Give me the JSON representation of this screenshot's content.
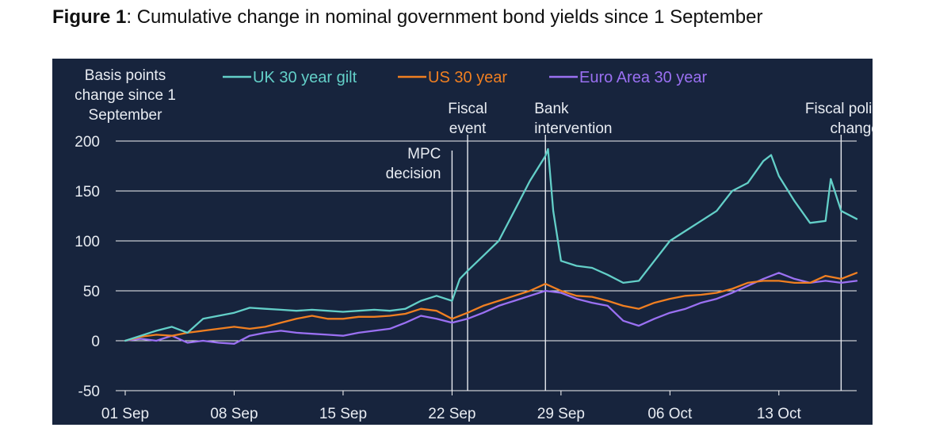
{
  "figure": {
    "label": "Figure 1",
    "title_text": ": Cumulative change in nominal government bond yields since 1 September"
  },
  "chart_data": {
    "type": "line",
    "title": "Figure 1: Cumulative change in nominal government bond yields since 1 September",
    "ylabel_lines": [
      "Basis points",
      "change since 1",
      "September"
    ],
    "xlabel": "",
    "ylim": [
      -50,
      200
    ],
    "yticks": [
      -50,
      0,
      50,
      100,
      150,
      200
    ],
    "x_domain": [
      "2022-09-01",
      "2022-10-18"
    ],
    "xticks": [
      {
        "date": "2022-09-01",
        "label": "01 Sep"
      },
      {
        "date": "2022-09-08",
        "label": "08 Sep"
      },
      {
        "date": "2022-09-15",
        "label": "15 Sep"
      },
      {
        "date": "2022-09-22",
        "label": "22 Sep"
      },
      {
        "date": "2022-09-29",
        "label": "29 Sep"
      },
      {
        "date": "2022-10-06",
        "label": "06 Oct"
      },
      {
        "date": "2022-10-13",
        "label": "13 Oct"
      }
    ],
    "grid": true,
    "legend_position": "top",
    "annotations": [
      {
        "date": "2022-09-22",
        "lines": [
          "MPC",
          "decision"
        ]
      },
      {
        "date": "2022-09-23",
        "lines": [
          "Fiscal",
          "event"
        ]
      },
      {
        "date": "2022-09-28",
        "lines": [
          "Bank",
          "intervention"
        ]
      },
      {
        "date": "2022-10-17",
        "lines": [
          "Fiscal policy",
          "changes"
        ]
      }
    ],
    "series": [
      {
        "name": "UK 30 year gilt",
        "color": "#63cfc8",
        "points": [
          [
            "2022-09-01",
            0
          ],
          [
            "2022-09-02",
            5
          ],
          [
            "2022-09-03",
            10
          ],
          [
            "2022-09-04",
            14
          ],
          [
            "2022-09-05",
            8
          ],
          [
            "2022-09-06",
            22
          ],
          [
            "2022-09-07",
            25
          ],
          [
            "2022-09-08",
            28
          ],
          [
            "2022-09-09",
            33
          ],
          [
            "2022-09-10",
            32
          ],
          [
            "2022-09-11",
            31
          ],
          [
            "2022-09-12",
            30
          ],
          [
            "2022-09-13",
            31
          ],
          [
            "2022-09-14",
            30
          ],
          [
            "2022-09-15",
            29
          ],
          [
            "2022-09-16",
            30
          ],
          [
            "2022-09-17",
            31
          ],
          [
            "2022-09-18",
            30
          ],
          [
            "2022-09-19",
            32
          ],
          [
            "2022-09-20",
            40
          ],
          [
            "2022-09-21",
            45
          ],
          [
            "2022-09-22",
            40
          ],
          [
            "2022-09-22T12",
            62
          ],
          [
            "2022-09-23",
            70
          ],
          [
            "2022-09-24",
            85
          ],
          [
            "2022-09-25",
            100
          ],
          [
            "2022-09-26",
            130
          ],
          [
            "2022-09-27",
            160
          ],
          [
            "2022-09-28",
            185
          ],
          [
            "2022-09-28T04",
            192
          ],
          [
            "2022-09-28T12",
            130
          ],
          [
            "2022-09-29",
            80
          ],
          [
            "2022-09-30",
            75
          ],
          [
            "2022-10-01",
            73
          ],
          [
            "2022-10-02",
            66
          ],
          [
            "2022-10-03",
            58
          ],
          [
            "2022-10-04",
            60
          ],
          [
            "2022-10-05",
            80
          ],
          [
            "2022-10-06",
            100
          ],
          [
            "2022-10-07",
            110
          ],
          [
            "2022-10-08",
            120
          ],
          [
            "2022-10-09",
            130
          ],
          [
            "2022-10-10",
            150
          ],
          [
            "2022-10-11",
            158
          ],
          [
            "2022-10-12",
            180
          ],
          [
            "2022-10-12T12",
            186
          ],
          [
            "2022-10-13",
            165
          ],
          [
            "2022-10-14",
            140
          ],
          [
            "2022-10-15",
            118
          ],
          [
            "2022-10-16",
            120
          ],
          [
            "2022-10-16T08",
            162
          ],
          [
            "2022-10-17",
            130
          ],
          [
            "2022-10-18",
            122
          ]
        ]
      },
      {
        "name": "US 30 year",
        "color": "#f07f21",
        "points": [
          [
            "2022-09-01",
            0
          ],
          [
            "2022-09-02",
            4
          ],
          [
            "2022-09-03",
            6
          ],
          [
            "2022-09-04",
            5
          ],
          [
            "2022-09-05",
            8
          ],
          [
            "2022-09-06",
            10
          ],
          [
            "2022-09-07",
            12
          ],
          [
            "2022-09-08",
            14
          ],
          [
            "2022-09-09",
            12
          ],
          [
            "2022-09-10",
            14
          ],
          [
            "2022-09-11",
            18
          ],
          [
            "2022-09-12",
            22
          ],
          [
            "2022-09-13",
            25
          ],
          [
            "2022-09-14",
            22
          ],
          [
            "2022-09-15",
            22
          ],
          [
            "2022-09-16",
            24
          ],
          [
            "2022-09-17",
            24
          ],
          [
            "2022-09-18",
            25
          ],
          [
            "2022-09-19",
            27
          ],
          [
            "2022-09-20",
            32
          ],
          [
            "2022-09-21",
            30
          ],
          [
            "2022-09-22",
            22
          ],
          [
            "2022-09-23",
            28
          ],
          [
            "2022-09-24",
            35
          ],
          [
            "2022-09-25",
            40
          ],
          [
            "2022-09-26",
            45
          ],
          [
            "2022-09-27",
            50
          ],
          [
            "2022-09-28",
            57
          ],
          [
            "2022-09-29",
            50
          ],
          [
            "2022-09-30",
            45
          ],
          [
            "2022-10-01",
            44
          ],
          [
            "2022-10-02",
            40
          ],
          [
            "2022-10-03",
            35
          ],
          [
            "2022-10-04",
            32
          ],
          [
            "2022-10-05",
            38
          ],
          [
            "2022-10-06",
            42
          ],
          [
            "2022-10-07",
            45
          ],
          [
            "2022-10-08",
            46
          ],
          [
            "2022-10-09",
            48
          ],
          [
            "2022-10-10",
            52
          ],
          [
            "2022-10-11",
            58
          ],
          [
            "2022-10-12",
            60
          ],
          [
            "2022-10-13",
            60
          ],
          [
            "2022-10-14",
            58
          ],
          [
            "2022-10-15",
            58
          ],
          [
            "2022-10-16",
            65
          ],
          [
            "2022-10-17",
            62
          ],
          [
            "2022-10-18",
            68
          ]
        ]
      },
      {
        "name": "Euro Area 30 year",
        "color": "#9a70f2",
        "points": [
          [
            "2022-09-01",
            0
          ],
          [
            "2022-09-02",
            2
          ],
          [
            "2022-09-03",
            0
          ],
          [
            "2022-09-04",
            5
          ],
          [
            "2022-09-05",
            -2
          ],
          [
            "2022-09-06",
            0
          ],
          [
            "2022-09-07",
            -2
          ],
          [
            "2022-09-08",
            -3
          ],
          [
            "2022-09-09",
            5
          ],
          [
            "2022-09-10",
            8
          ],
          [
            "2022-09-11",
            10
          ],
          [
            "2022-09-12",
            8
          ],
          [
            "2022-09-13",
            7
          ],
          [
            "2022-09-14",
            6
          ],
          [
            "2022-09-15",
            5
          ],
          [
            "2022-09-16",
            8
          ],
          [
            "2022-09-17",
            10
          ],
          [
            "2022-09-18",
            12
          ],
          [
            "2022-09-19",
            18
          ],
          [
            "2022-09-20",
            25
          ],
          [
            "2022-09-21",
            22
          ],
          [
            "2022-09-22",
            18
          ],
          [
            "2022-09-23",
            22
          ],
          [
            "2022-09-24",
            28
          ],
          [
            "2022-09-25",
            35
          ],
          [
            "2022-09-26",
            40
          ],
          [
            "2022-09-27",
            45
          ],
          [
            "2022-09-28",
            50
          ],
          [
            "2022-09-29",
            48
          ],
          [
            "2022-09-30",
            42
          ],
          [
            "2022-10-01",
            38
          ],
          [
            "2022-10-02",
            35
          ],
          [
            "2022-10-03",
            20
          ],
          [
            "2022-10-04",
            15
          ],
          [
            "2022-10-05",
            22
          ],
          [
            "2022-10-06",
            28
          ],
          [
            "2022-10-07",
            32
          ],
          [
            "2022-10-08",
            38
          ],
          [
            "2022-10-09",
            42
          ],
          [
            "2022-10-10",
            48
          ],
          [
            "2022-10-11",
            55
          ],
          [
            "2022-10-12",
            62
          ],
          [
            "2022-10-13",
            68
          ],
          [
            "2022-10-14",
            62
          ],
          [
            "2022-10-15",
            58
          ],
          [
            "2022-10-16",
            60
          ],
          [
            "2022-10-17",
            58
          ],
          [
            "2022-10-18",
            60
          ]
        ]
      }
    ]
  },
  "colors": {
    "panel_background": "#17243d",
    "gridline": "#ffffff",
    "axis_text": "#e8ecf2"
  }
}
